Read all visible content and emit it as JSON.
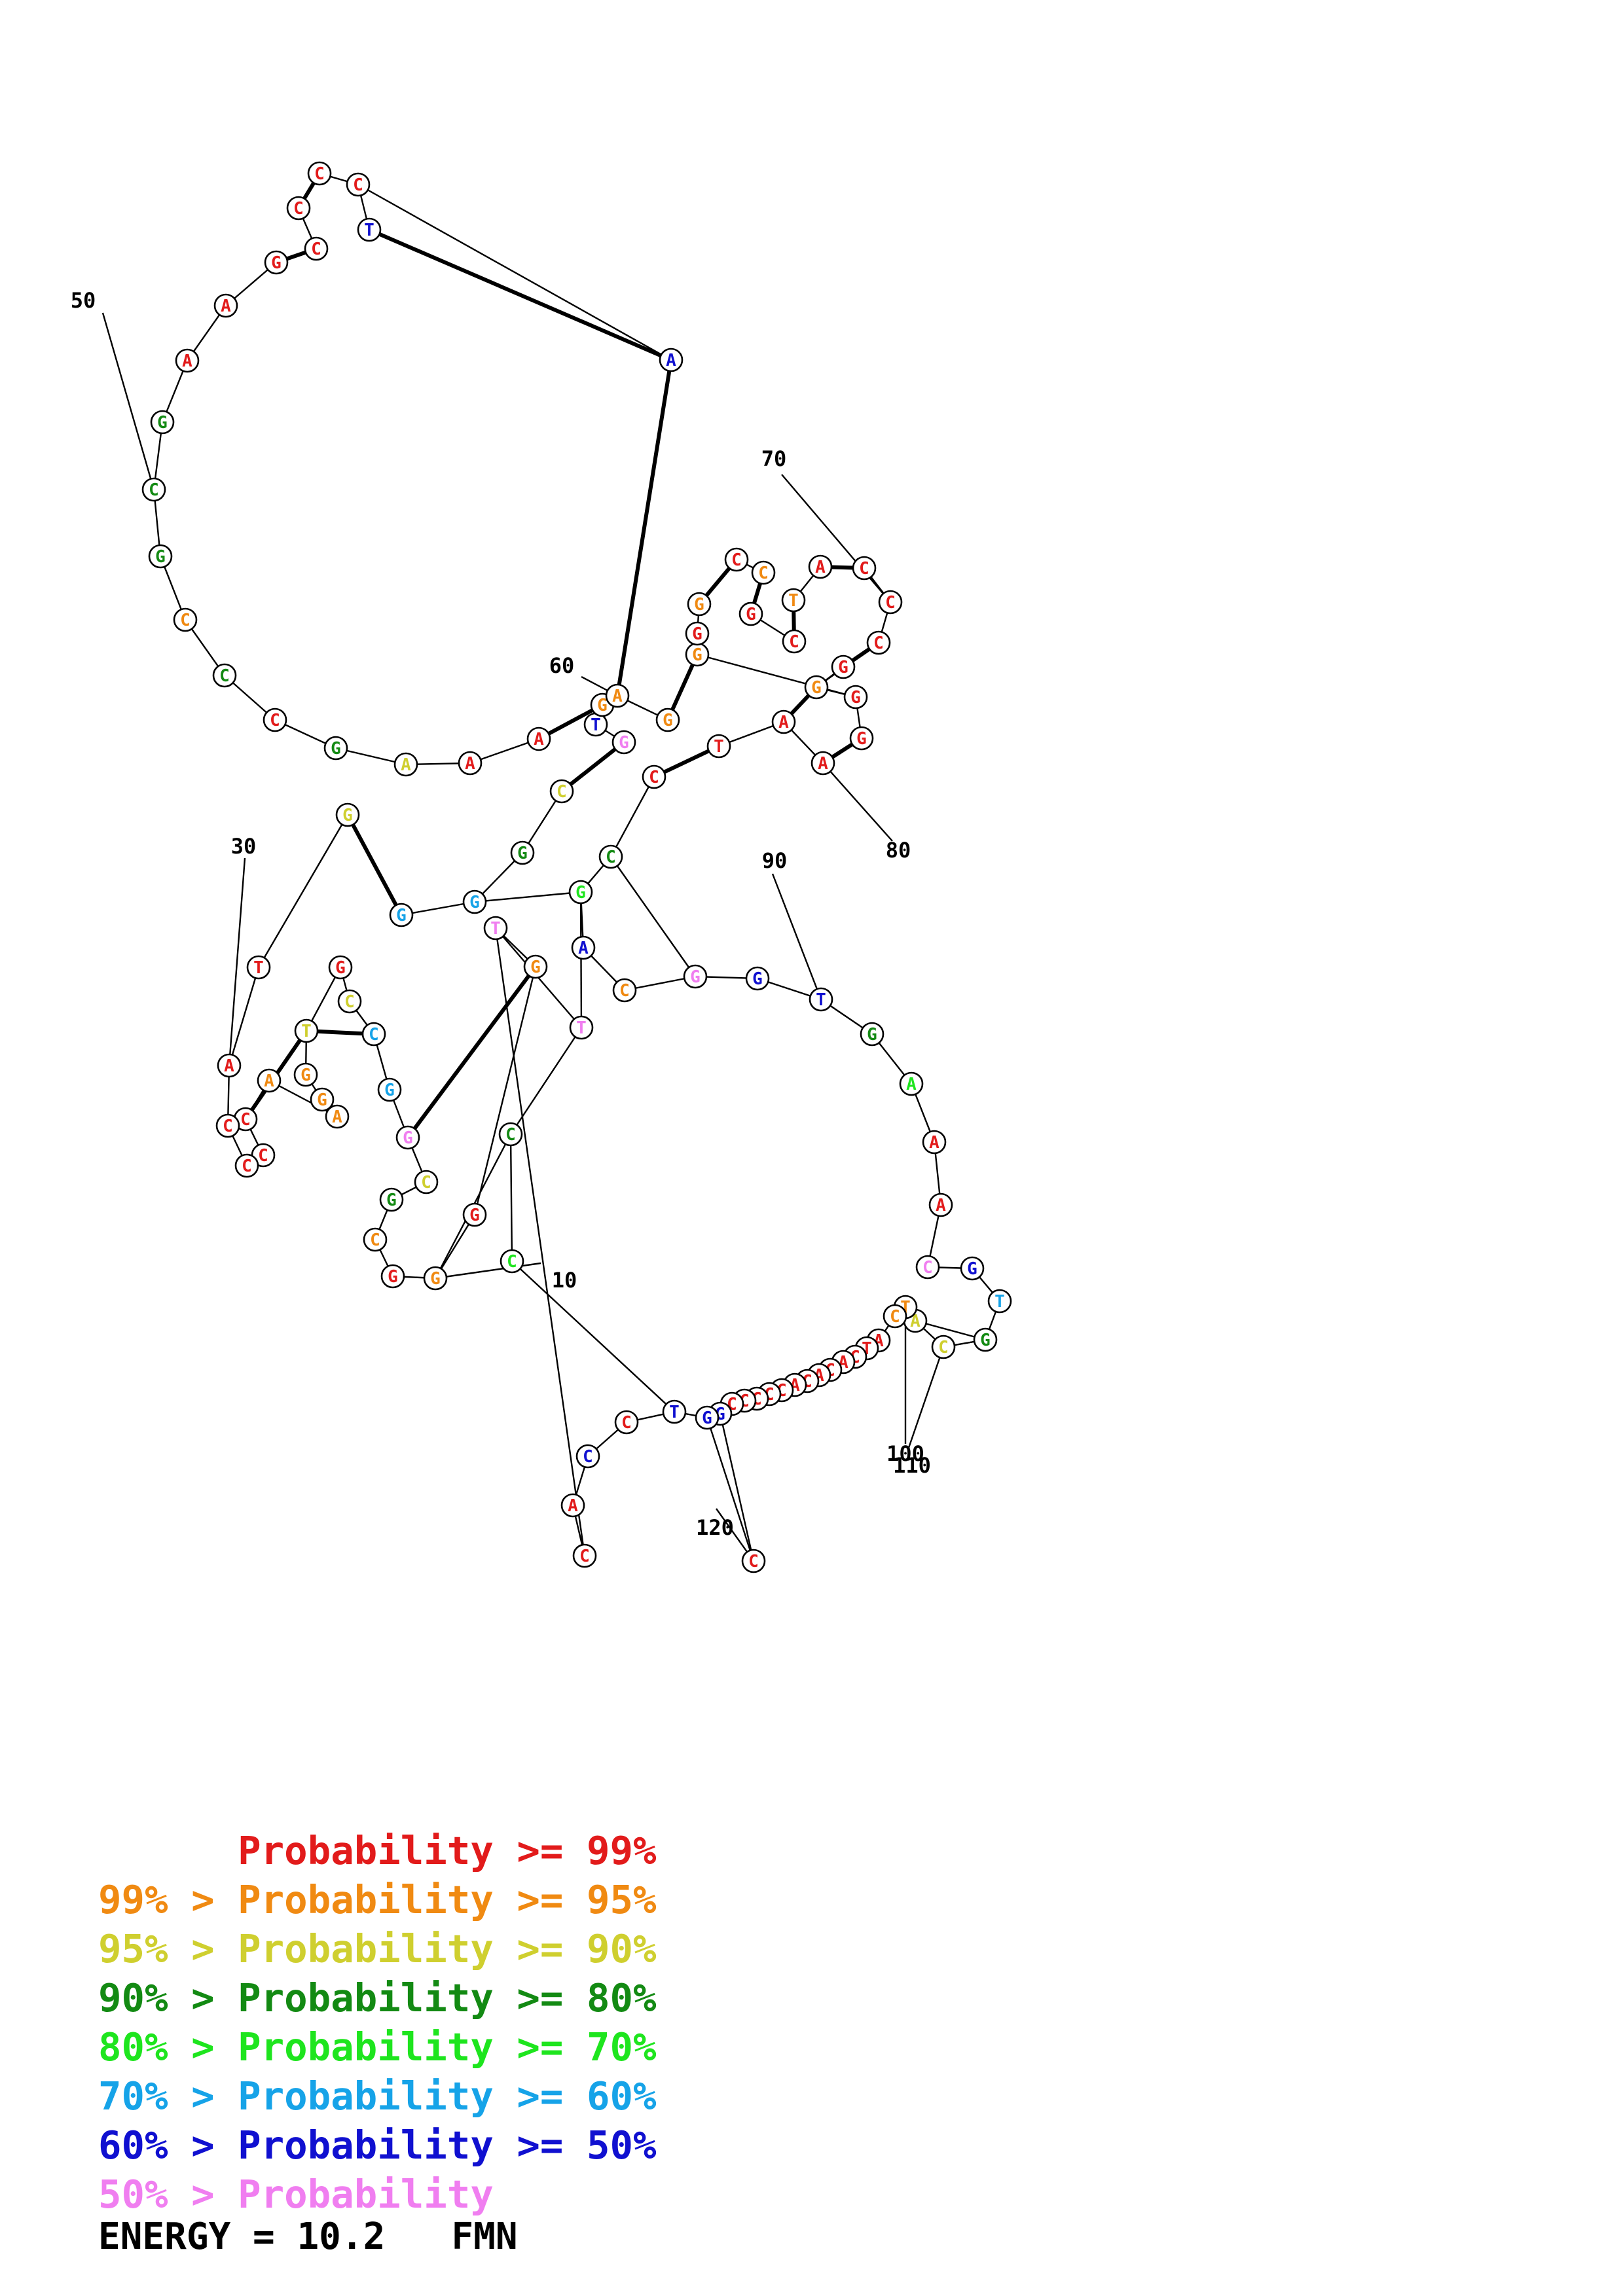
{
  "colors": {
    "p99": "#e21b1b",
    "p95": "#f08a12",
    "p90": "#cfcf2f",
    "p80": "#138a13",
    "p70": "#1ee51e",
    "p60": "#16a3e8",
    "p50": "#1010d0",
    "p0": "#f07ef0"
  },
  "diagram": {
    "position_labels": [
      "10",
      "30",
      "50",
      "60",
      "70",
      "80",
      "90",
      "100",
      "110",
      "120"
    ],
    "nucleotides": [
      {
        "b": "C",
        "c": "p99"
      },
      {
        "b": "A",
        "c": "p99"
      },
      {
        "b": "C",
        "c": "p50"
      },
      {
        "b": "C",
        "c": "p99"
      },
      {
        "b": "T",
        "c": "p50"
      },
      {
        "b": "C",
        "c": "p70"
      },
      {
        "b": "C",
        "c": "p80"
      },
      {
        "b": "T",
        "c": "p0"
      },
      {
        "b": "T",
        "c": "p0"
      },
      {
        "b": "G",
        "c": "p95"
      },
      {
        "b": "G",
        "c": "p99"
      },
      {
        "b": "G",
        "c": "p95"
      },
      {
        "b": "G",
        "c": "p99"
      },
      {
        "b": "C",
        "c": "p95"
      },
      {
        "b": "G",
        "c": "p80"
      },
      {
        "b": "C",
        "c": "p90"
      },
      {
        "b": "G",
        "c": "p0"
      },
      {
        "b": "G",
        "c": "p60"
      },
      {
        "b": "C",
        "c": "p60"
      },
      {
        "b": "C",
        "c": "p90"
      },
      {
        "b": "G",
        "c": "p99"
      },
      {
        "b": "T",
        "c": "p90"
      },
      {
        "b": "G",
        "c": "p95"
      },
      {
        "b": "G",
        "c": "p95"
      },
      {
        "b": "A",
        "c": "p95"
      },
      {
        "b": "A",
        "c": "p95"
      },
      {
        "b": "C",
        "c": "p99"
      },
      {
        "b": "C",
        "c": "p99"
      },
      {
        "b": "C",
        "c": "p99"
      },
      {
        "b": "C",
        "c": "p99"
      },
      {
        "b": "A",
        "c": "p99"
      },
      {
        "b": "T",
        "c": "p99"
      },
      {
        "b": "G",
        "c": "p90"
      },
      {
        "b": "G",
        "c": "p60"
      },
      {
        "b": "G",
        "c": "p60"
      },
      {
        "b": "G",
        "c": "p80"
      },
      {
        "b": "C",
        "c": "p90"
      },
      {
        "b": "G",
        "c": "p0"
      },
      {
        "b": "T",
        "c": "p50"
      },
      {
        "b": "G",
        "c": "p95"
      },
      {
        "b": "A",
        "c": "p99"
      },
      {
        "b": "A",
        "c": "p99"
      },
      {
        "b": "A",
        "c": "p90"
      },
      {
        "b": "G",
        "c": "p80"
      },
      {
        "b": "C",
        "c": "p99"
      },
      {
        "b": "C",
        "c": "p80"
      },
      {
        "b": "C",
        "c": "p95"
      },
      {
        "b": "G",
        "c": "p80"
      },
      {
        "b": "C",
        "c": "p80"
      },
      {
        "b": "G",
        "c": "p80"
      },
      {
        "b": "A",
        "c": "p99"
      },
      {
        "b": "A",
        "c": "p99"
      },
      {
        "b": "G",
        "c": "p99"
      },
      {
        "b": "C",
        "c": "p99"
      },
      {
        "b": "C",
        "c": "p99"
      },
      {
        "b": "C",
        "c": "p99"
      },
      {
        "b": "C",
        "c": "p99"
      },
      {
        "b": "T",
        "c": "p50"
      },
      {
        "b": "A",
        "c": "p50"
      },
      {
        "b": "A",
        "c": "p95"
      },
      {
        "b": "G",
        "c": "p95"
      },
      {
        "b": "G",
        "c": "p95"
      },
      {
        "b": "G",
        "c": "p99"
      },
      {
        "b": "G",
        "c": "p95"
      },
      {
        "b": "C",
        "c": "p99"
      },
      {
        "b": "C",
        "c": "p95"
      },
      {
        "b": "G",
        "c": "p99"
      },
      {
        "b": "C",
        "c": "p99"
      },
      {
        "b": "T",
        "c": "p95"
      },
      {
        "b": "A",
        "c": "p99"
      },
      {
        "b": "C",
        "c": "p99"
      },
      {
        "b": "C",
        "c": "p99"
      },
      {
        "b": "C",
        "c": "p99"
      },
      {
        "b": "G",
        "c": "p99"
      },
      {
        "b": "G",
        "c": "p95"
      },
      {
        "b": "G",
        "c": "p99"
      },
      {
        "b": "G",
        "c": "p99"
      },
      {
        "b": "A",
        "c": "p99"
      },
      {
        "b": "A",
        "c": "p99"
      },
      {
        "b": "T",
        "c": "p99"
      },
      {
        "b": "C",
        "c": "p99"
      },
      {
        "b": "C",
        "c": "p80"
      },
      {
        "b": "G",
        "c": "p70"
      },
      {
        "b": "A",
        "c": "p50"
      },
      {
        "b": "C",
        "c": "p95"
      },
      {
        "b": "G",
        "c": "p0"
      },
      {
        "b": "G",
        "c": "p50"
      },
      {
        "b": "T",
        "c": "p50"
      },
      {
        "b": "G",
        "c": "p80"
      },
      {
        "b": "A",
        "c": "p70"
      },
      {
        "b": "A",
        "c": "p99"
      },
      {
        "b": "A",
        "c": "p99"
      },
      {
        "b": "C",
        "c": "p0"
      },
      {
        "b": "G",
        "c": "p50"
      },
      {
        "b": "T",
        "c": "p60"
      },
      {
        "b": "G",
        "c": "p80"
      },
      {
        "b": "C",
        "c": "p90"
      },
      {
        "b": "A",
        "c": "p90"
      },
      {
        "b": "T",
        "c": "p95"
      },
      {
        "b": "C",
        "c": "p95"
      },
      {
        "b": "A",
        "c": "p99"
      },
      {
        "b": "T",
        "c": "p99"
      },
      {
        "b": "C",
        "c": "p99"
      },
      {
        "b": "A",
        "c": "p99"
      },
      {
        "b": "C",
        "c": "p99"
      },
      {
        "b": "A",
        "c": "p99"
      },
      {
        "b": "C",
        "c": "p99"
      },
      {
        "b": "A",
        "c": "p99"
      },
      {
        "b": "C",
        "c": "p99"
      },
      {
        "b": "C",
        "c": "p99"
      },
      {
        "b": "C",
        "c": "p99"
      },
      {
        "b": "C",
        "c": "p99"
      },
      {
        "b": "C",
        "c": "p99"
      },
      {
        "b": "G",
        "c": "p50"
      },
      {
        "b": "G",
        "c": "p50"
      },
      {
        "b": "C",
        "c": "p99"
      }
    ]
  },
  "legend": [
    {
      "prefix": "",
      "label": "Probability",
      "suffix": ">= 99%",
      "color": "p99"
    },
    {
      "prefix": "99% >",
      "label": "Probability",
      "suffix": ">= 95%",
      "color": "p95"
    },
    {
      "prefix": "95% >",
      "label": "Probability",
      "suffix": ">= 90%",
      "color": "p90"
    },
    {
      "prefix": "90% >",
      "label": "Probability",
      "suffix": ">= 80%",
      "color": "p80"
    },
    {
      "prefix": "80% >",
      "label": "Probability",
      "suffix": ">= 70%",
      "color": "p70"
    },
    {
      "prefix": "70% >",
      "label": "Probability",
      "suffix": ">= 60%",
      "color": "p60"
    },
    {
      "prefix": "60% >",
      "label": "Probability",
      "suffix": ">= 50%",
      "color": "p50"
    },
    {
      "prefix": "50% >",
      "label": "Probability",
      "suffix": "",
      "color": "p0"
    }
  ],
  "energy": {
    "label": "ENERGY =",
    "value": "10.2",
    "name": "FMN"
  }
}
